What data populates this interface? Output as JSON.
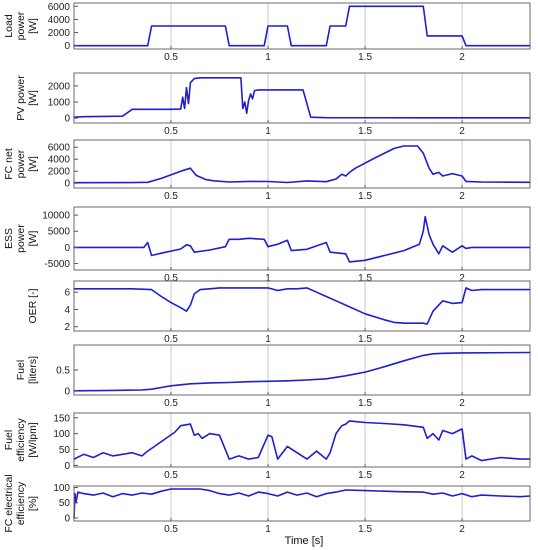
{
  "chart_data": {
    "type": "line",
    "xlabel": "Time [s]",
    "x_ticks": [
      0.5,
      1,
      1.5,
      2
    ],
    "xlim": [
      0,
      2.35
    ],
    "line_color": "#1f1fd0",
    "panels": [
      {
        "ylabel_lines": [
          "Load",
          "power",
          "[W]"
        ],
        "ylim": [
          -500,
          6500
        ],
        "yticks": [
          0,
          2000,
          4000,
          6000
        ],
        "series": [
          {
            "x": [
              0,
              0.38,
              0.4,
              0.78,
              0.8,
              0.98,
              1.0,
              1.1,
              1.12,
              1.3,
              1.32,
              1.4,
              1.42,
              1.8,
              1.82,
              2.0,
              2.02,
              2.35
            ],
            "y": [
              0,
              0,
              3000,
              3000,
              0,
              0,
              3000,
              3000,
              0,
              0,
              3000,
              3000,
              6000,
              6000,
              1500,
              1500,
              0,
              0
            ]
          }
        ]
      },
      {
        "ylabel_lines": [
          "PV power",
          "[W]"
        ],
        "ylim": [
          -300,
          2800
        ],
        "yticks": [
          0,
          1000,
          2000
        ],
        "series": [
          {
            "x": [
              0,
              0.05,
              0.15,
              0.25,
              0.3,
              0.5,
              0.55,
              0.56,
              0.57,
              0.58,
              0.59,
              0.6,
              0.62,
              0.65,
              0.7,
              0.75,
              0.86,
              0.87,
              0.88,
              0.89,
              0.9,
              0.91,
              0.92,
              0.93,
              0.95,
              1.0,
              1.1,
              1.18,
              1.2,
              1.22,
              1.3,
              1.8,
              2.0,
              2.35
            ],
            "y": [
              60,
              90,
              110,
              120,
              550,
              550,
              560,
              1300,
              600,
              1900,
              900,
              2200,
              2450,
              2500,
              2500,
              2500,
              2500,
              600,
              1000,
              300,
              1100,
              1500,
              1200,
              1700,
              1750,
              1750,
              1750,
              1750,
              900,
              60,
              30,
              20,
              20,
              20
            ]
          }
        ]
      },
      {
        "ylabel_lines": [
          "FC net",
          "power",
          "[W]"
        ],
        "ylim": [
          -800,
          7200
        ],
        "yticks": [
          0,
          2000,
          4000,
          6000
        ],
        "series": [
          {
            "x": [
              0,
              0.3,
              0.38,
              0.45,
              0.55,
              0.6,
              0.63,
              0.68,
              0.72,
              0.8,
              0.9,
              1.0,
              1.1,
              1.2,
              1.3,
              1.35,
              1.38,
              1.4,
              1.42,
              1.45,
              1.55,
              1.65,
              1.7,
              1.77,
              1.8,
              1.83,
              1.85,
              1.88,
              1.9,
              1.95,
              2.0,
              2.02,
              2.1,
              2.35
            ],
            "y": [
              80,
              100,
              150,
              800,
              2000,
              2500,
              1300,
              600,
              400,
              200,
              300,
              280,
              120,
              380,
              250,
              700,
              1500,
              1200,
              1800,
              2500,
              4200,
              5800,
              6200,
              6200,
              5000,
              2500,
              1500,
              1800,
              1200,
              1600,
              1200,
              300,
              200,
              150
            ]
          }
        ]
      },
      {
        "ylabel_lines": [
          "ESS",
          "power",
          "[W]"
        ],
        "ylim": [
          -7000,
          12500
        ],
        "yticks": [
          -5000,
          0,
          5000,
          10000
        ],
        "series": [
          {
            "x": [
              0,
              0.36,
              0.38,
              0.4,
              0.45,
              0.55,
              0.58,
              0.6,
              0.62,
              0.7,
              0.78,
              0.8,
              0.85,
              0.9,
              0.98,
              1.0,
              1.05,
              1.1,
              1.12,
              1.2,
              1.3,
              1.32,
              1.4,
              1.42,
              1.5,
              1.6,
              1.7,
              1.78,
              1.8,
              1.81,
              1.83,
              1.85,
              1.88,
              1.9,
              1.95,
              2.0,
              2.02,
              2.05,
              2.35
            ],
            "y": [
              0,
              0,
              1500,
              -2500,
              -1800,
              -500,
              800,
              500,
              -1500,
              -800,
              200,
              2500,
              2500,
              2800,
              2500,
              200,
              1000,
              2200,
              -1000,
              -600,
              1500,
              -1500,
              -2000,
              -4500,
              -4000,
              -2500,
              -1000,
              1000,
              5000,
              9500,
              4000,
              1000,
              -2000,
              500,
              -1500,
              500,
              -300,
              0,
              0
            ]
          }
        ]
      },
      {
        "ylabel_lines": [
          "OER [-]"
        ],
        "ylim": [
          1.5,
          7.3
        ],
        "yticks": [
          2,
          4,
          6
        ],
        "series": [
          {
            "x": [
              0,
              0.25,
              0.3,
              0.4,
              0.45,
              0.5,
              0.55,
              0.58,
              0.6,
              0.62,
              0.65,
              0.7,
              0.75,
              0.8,
              0.85,
              0.9,
              1.0,
              1.05,
              1.1,
              1.15,
              1.2,
              1.25,
              1.3,
              1.35,
              1.4,
              1.5,
              1.6,
              1.65,
              1.7,
              1.75,
              1.8,
              1.82,
              1.85,
              1.9,
              1.95,
              2.0,
              2.02,
              2.05,
              2.1,
              2.35
            ],
            "y": [
              6.4,
              6.4,
              6.4,
              6.3,
              5.5,
              4.8,
              4.2,
              3.8,
              4.5,
              5.8,
              6.3,
              6.4,
              6.5,
              6.5,
              6.5,
              6.5,
              6.5,
              6.2,
              6.4,
              6.4,
              6.5,
              6.0,
              5.5,
              5.0,
              4.5,
              3.5,
              2.8,
              2.5,
              2.4,
              2.4,
              2.4,
              2.3,
              3.8,
              5.0,
              4.7,
              4.8,
              6.5,
              6.2,
              6.3,
              6.3
            ]
          }
        ]
      },
      {
        "ylabel_lines": [
          "Fuel",
          "[liters]"
        ],
        "ylim": [
          -0.1,
          1.1
        ],
        "yticks": [
          0,
          0.5
        ],
        "series": [
          {
            "x": [
              0,
              0.2,
              0.35,
              0.4,
              0.45,
              0.5,
              0.6,
              0.7,
              0.8,
              0.9,
              1.0,
              1.1,
              1.2,
              1.3,
              1.4,
              1.5,
              1.6,
              1.7,
              1.8,
              1.85,
              1.9,
              2.0,
              2.35
            ],
            "y": [
              0,
              0.01,
              0.02,
              0.04,
              0.08,
              0.12,
              0.17,
              0.19,
              0.2,
              0.22,
              0.23,
              0.24,
              0.26,
              0.29,
              0.36,
              0.45,
              0.58,
              0.72,
              0.85,
              0.89,
              0.9,
              0.91,
              0.92
            ]
          }
        ]
      },
      {
        "ylabel_lines": [
          "Fuel",
          "efficiency",
          "[W/lpm]"
        ],
        "ylim": [
          -5,
          165
        ],
        "yticks": [
          0,
          50,
          100,
          150
        ],
        "series": [
          {
            "x": [
              0,
              0.05,
              0.1,
              0.15,
              0.2,
              0.25,
              0.3,
              0.35,
              0.38,
              0.45,
              0.52,
              0.55,
              0.6,
              0.62,
              0.64,
              0.66,
              0.7,
              0.75,
              0.8,
              0.85,
              0.9,
              0.95,
              1.0,
              1.02,
              1.05,
              1.1,
              1.2,
              1.25,
              1.3,
              1.32,
              1.35,
              1.38,
              1.4,
              1.42,
              1.45,
              1.5,
              1.6,
              1.7,
              1.8,
              1.82,
              1.85,
              1.88,
              1.9,
              1.95,
              2.0,
              2.02,
              2.05,
              2.1,
              2.2,
              2.3,
              2.35
            ],
            "y": [
              20,
              35,
              25,
              40,
              30,
              35,
              40,
              30,
              45,
              75,
              105,
              125,
              130,
              95,
              100,
              85,
              100,
              95,
              20,
              30,
              20,
              25,
              95,
              90,
              20,
              60,
              20,
              45,
              20,
              40,
              100,
              125,
              130,
              140,
              138,
              135,
              132,
              128,
              120,
              85,
              100,
              80,
              110,
              100,
              115,
              20,
              30,
              15,
              25,
              20,
              20
            ]
          }
        ]
      },
      {
        "ylabel_lines": [
          "FC electrical",
          "efficiency",
          "[%]"
        ],
        "ylim": [
          -10,
          105
        ],
        "yticks": [
          0,
          50,
          100
        ],
        "series": [
          {
            "x": [
              0,
              0.005,
              0.01,
              0.02,
              0.05,
              0.1,
              0.15,
              0.2,
              0.25,
              0.3,
              0.35,
              0.4,
              0.45,
              0.5,
              0.55,
              0.6,
              0.65,
              0.7,
              0.75,
              0.8,
              0.85,
              0.9,
              0.95,
              1.0,
              1.05,
              1.1,
              1.15,
              1.2,
              1.25,
              1.3,
              1.35,
              1.4,
              1.5,
              1.6,
              1.7,
              1.8,
              1.85,
              1.9,
              1.95,
              2.0,
              2.05,
              2.1,
              2.2,
              2.3,
              2.35
            ],
            "y": [
              0,
              80,
              50,
              85,
              80,
              75,
              82,
              70,
              80,
              75,
              82,
              78,
              88,
              95,
              95,
              95,
              95,
              90,
              80,
              75,
              82,
              72,
              85,
              80,
              72,
              85,
              75,
              82,
              70,
              80,
              85,
              92,
              90,
              88,
              86,
              85,
              78,
              82,
              72,
              80,
              70,
              75,
              72,
              70,
              72
            ]
          }
        ]
      }
    ]
  }
}
